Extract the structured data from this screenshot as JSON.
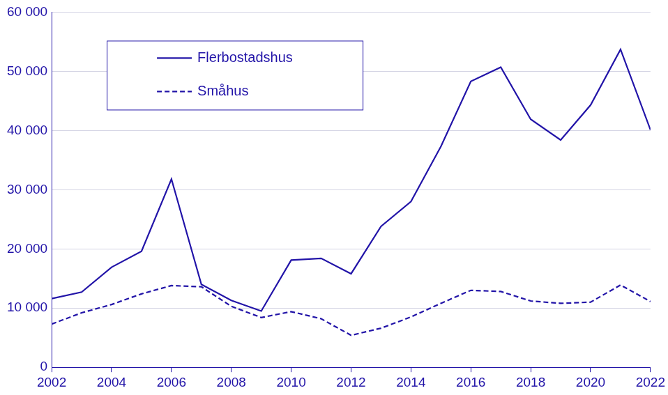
{
  "chart_data": {
    "type": "line",
    "x": [
      2002,
      2003,
      2004,
      2005,
      2006,
      2007,
      2008,
      2009,
      2010,
      2011,
      2012,
      2013,
      2014,
      2015,
      2016,
      2017,
      2018,
      2019,
      2020,
      2021,
      2022
    ],
    "series": [
      {
        "name": "Flerbostadshus",
        "color": "#2214a8",
        "line_style": "solid",
        "values": [
          11600,
          12700,
          16900,
          19600,
          31800,
          14000,
          11300,
          9500,
          18100,
          18400,
          15800,
          23800,
          28000,
          37300,
          48300,
          50700,
          41900,
          38400,
          44300,
          53700,
          40100
        ]
      },
      {
        "name": "Småhus",
        "color": "#2214a8",
        "line_style": "dashed",
        "values": [
          7300,
          9200,
          10600,
          12400,
          13800,
          13600,
          10300,
          8400,
          9400,
          8200,
          5400,
          6600,
          8500,
          10800,
          13000,
          12800,
          11200,
          10800,
          11000,
          13900,
          11100
        ]
      }
    ],
    "xlim": [
      2002,
      2022
    ],
    "xticks": [
      2002,
      2004,
      2006,
      2008,
      2010,
      2012,
      2014,
      2016,
      2018,
      2020,
      2022
    ],
    "ylim": [
      0,
      60000
    ],
    "yticks": [
      0,
      {
        "value": 10000,
        "label": "10 000"
      },
      {
        "value": 20000,
        "label": "20 000"
      },
      {
        "value": 30000,
        "label": "30 000"
      },
      {
        "value": 40000,
        "label": "40 000"
      },
      {
        "value": 50000,
        "label": "50 000"
      },
      {
        "value": 60000,
        "label": "60 000"
      }
    ],
    "grid": true,
    "legend": "upper left"
  }
}
